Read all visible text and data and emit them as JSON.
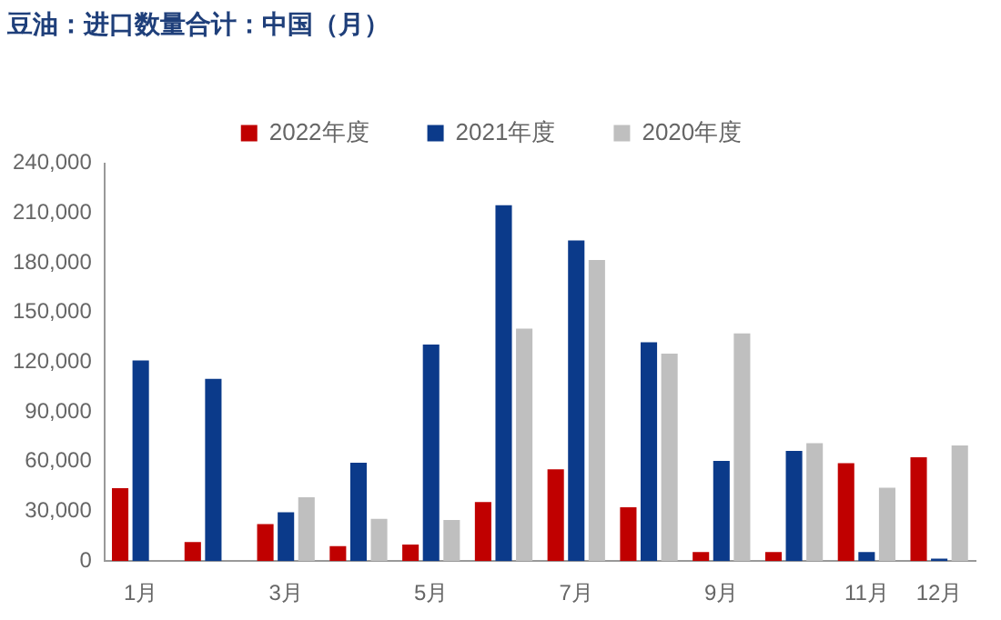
{
  "chart_data": {
    "type": "bar",
    "title": "豆油：进口数量合计：中国（月）",
    "categories": [
      "1月",
      null,
      "3月",
      null,
      "5月",
      null,
      "7月",
      null,
      "9月",
      null,
      "11月",
      "12月"
    ],
    "series": [
      {
        "name": "2022年度",
        "color": "#c00000",
        "values": [
          44000,
          11500,
          22300,
          9000,
          10000,
          35600,
          55400,
          32400,
          5400,
          5400,
          59000,
          62600
        ]
      },
      {
        "name": "2021年度",
        "color": "#0b3a8a",
        "values": [
          121000,
          110000,
          29500,
          59400,
          130600,
          214700,
          193500,
          132000,
          60400,
          66500,
          5400,
          1500
        ]
      },
      {
        "name": "2020年度",
        "color": "#bfbfbf",
        "values": [
          null,
          null,
          38500,
          25500,
          24800,
          140300,
          181700,
          125200,
          137400,
          71200,
          44200,
          69800
        ]
      }
    ],
    "ylim": [
      0,
      240000
    ],
    "yticks": [
      {
        "value": 0,
        "label": "0"
      },
      {
        "value": 30000,
        "label": "30,000"
      },
      {
        "value": 60000,
        "label": "60,000"
      },
      {
        "value": 90000,
        "label": "90,000"
      },
      {
        "value": 120000,
        "label": "120,000"
      },
      {
        "value": 150000,
        "label": "150,000"
      },
      {
        "value": 180000,
        "label": "180,000"
      },
      {
        "value": 210000,
        "label": "210,000"
      },
      {
        "value": 240000,
        "label": "240,000"
      }
    ],
    "grid": false,
    "legend": "top"
  }
}
